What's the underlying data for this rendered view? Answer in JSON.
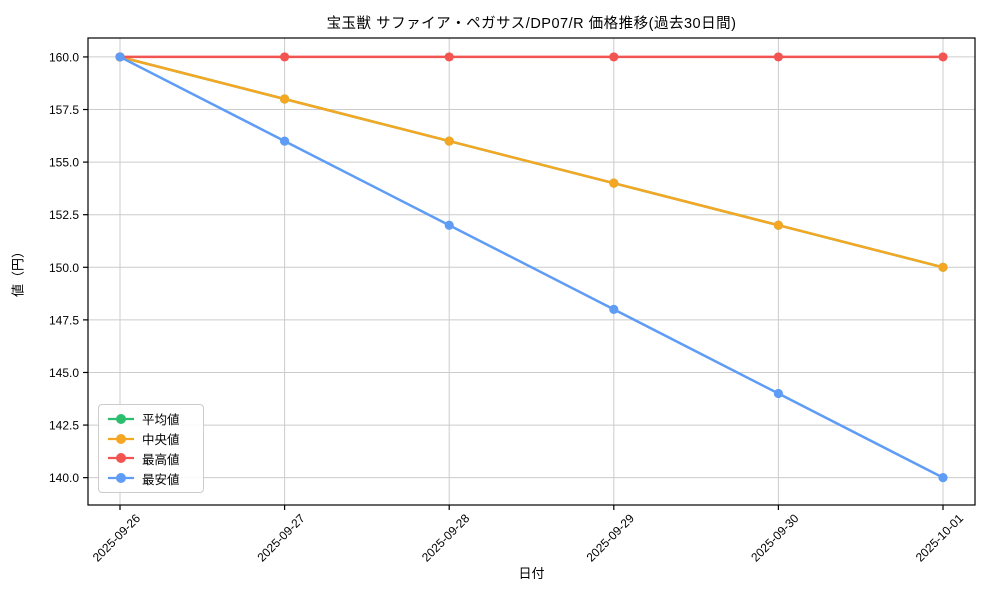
{
  "title": "宝玉獣 サファイア・ペガサス/DP07/R 価格推移(過去30日間)",
  "chart_data": {
    "type": "line",
    "title": "宝玉獣 サファイア・ペガサス/DP07/R 価格推移(過去30日間)",
    "xlabel": "日付",
    "ylabel": "値（円）",
    "categories": [
      "2025-09-26",
      "2025-09-27",
      "2025-09-28",
      "2025-09-29",
      "2025-09-30",
      "2025-10-01"
    ],
    "series": [
      {
        "key": "average",
        "name": "平均値",
        "color": "#2dbd6e",
        "values": [
          160,
          158,
          156,
          154,
          152,
          150
        ]
      },
      {
        "key": "median",
        "name": "中央値",
        "color": "#f5a623",
        "values": [
          160,
          158,
          156,
          154,
          152,
          150
        ]
      },
      {
        "key": "max",
        "name": "最高値",
        "color": "#f25551",
        "values": [
          160,
          160,
          160,
          160,
          160,
          160
        ]
      },
      {
        "key": "min",
        "name": "最安値",
        "color": "#5e9cf6",
        "values": [
          160,
          156,
          152,
          148,
          144,
          140
        ]
      }
    ],
    "yticks": [
      140.0,
      142.5,
      145.0,
      147.5,
      150.0,
      152.5,
      155.0,
      157.5,
      160.0
    ],
    "ylim": [
      138.7,
      160.9
    ],
    "grid": true,
    "legend_position": "lower left",
    "note_overlap": "平均値 line is hidden beneath 中央値 line (identical values)"
  },
  "colors": {
    "grid": "#cccccc",
    "axis": "#000000",
    "background": "#ffffff",
    "tick_label": "#000000"
  }
}
